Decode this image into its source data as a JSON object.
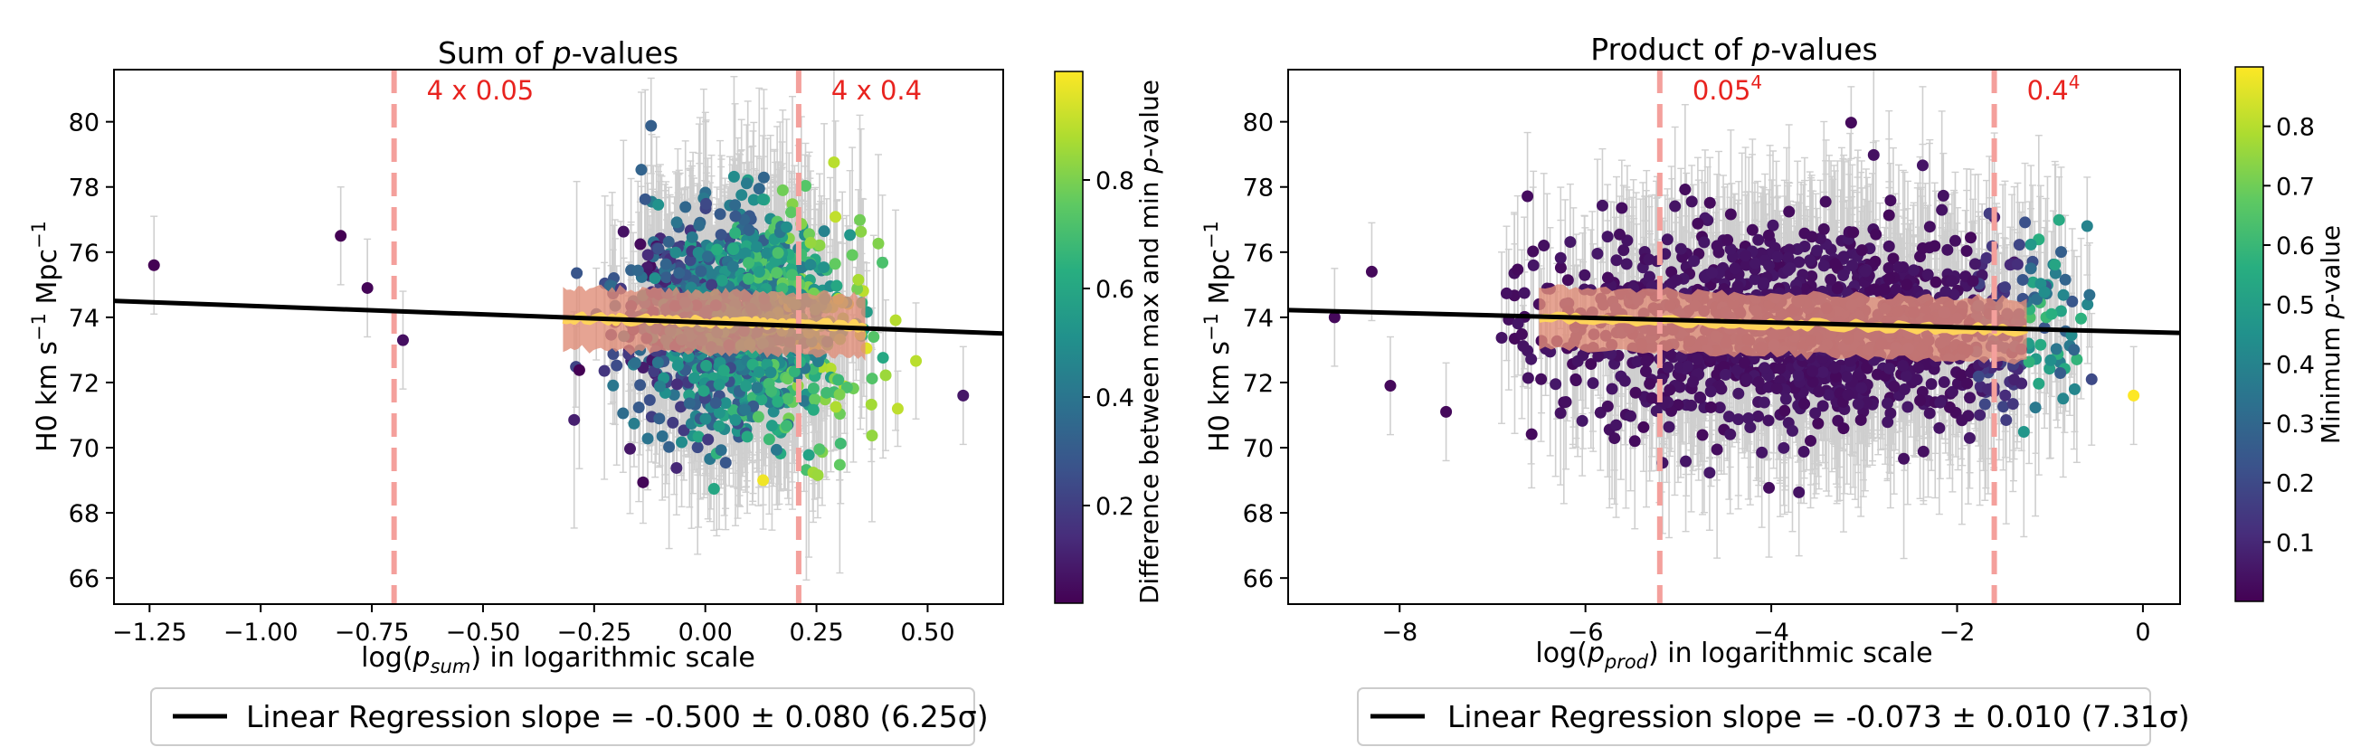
{
  "chart_data": [
    {
      "type": "scatter",
      "title": "Sum of p-values",
      "title_parts": {
        "before": "Sum of ",
        "italic": "p",
        "after": "-values"
      },
      "xlabel_parts": {
        "before": "log(",
        "base": "p",
        "sub": "sum",
        "after": ") in logarithmic scale"
      },
      "ylabel_parts": {
        "base": "H0 km s",
        "sup1": "−1",
        "mid": " Mpc",
        "sup2": "−1"
      },
      "xlim": [
        -1.33,
        0.67
      ],
      "ylim": [
        65.2,
        81.6
      ],
      "xticks": [
        -1.25,
        -1.0,
        -0.75,
        -0.5,
        -0.25,
        0.0,
        0.25,
        0.5
      ],
      "xtick_labels": [
        "−1.25",
        "−1.00",
        "−0.75",
        "−0.50",
        "−0.25",
        "0.00",
        "0.25",
        "0.50"
      ],
      "yticks": [
        66,
        68,
        70,
        72,
        74,
        76,
        78,
        80
      ],
      "ytick_labels": [
        "66",
        "68",
        "70",
        "72",
        "74",
        "76",
        "78",
        "80"
      ],
      "vlines": [
        {
          "x": -0.7,
          "label": "4 x 0.05",
          "label_parts": {
            "base": "4 x 0.05"
          }
        },
        {
          "x": 0.21,
          "label": "4 x 0.4",
          "label_parts": {
            "base": "4 x 0.4"
          }
        }
      ],
      "regression": {
        "slope": -0.5,
        "intercept": 73.84
      },
      "band": {
        "x_start": -0.32,
        "x_end": 0.36,
        "center_start": 73.98,
        "center_end": 73.74,
        "half_width": 0.95
      },
      "cloud": {
        "x_center": 0.07,
        "x_spread": 0.12,
        "x_min": -0.35,
        "x_max": 0.5,
        "y_mean": 73.85,
        "y_spread": 1.6,
        "count": 1300,
        "seed": 11,
        "color_mode": "sum"
      },
      "outliers": [
        {
          "x": -1.24,
          "y": 75.6,
          "c": 0.02
        },
        {
          "x": -0.82,
          "y": 76.5,
          "c": 0.02
        },
        {
          "x": -0.76,
          "y": 74.9,
          "c": 0.03
        },
        {
          "x": -0.68,
          "y": 73.3,
          "c": 0.06
        },
        {
          "x": 0.58,
          "y": 71.6,
          "c": 0.08
        },
        {
          "x": 0.13,
          "y": 69.0,
          "c": 0.98
        }
      ],
      "colorbar": {
        "label_parts": {
          "before": "Difference between max and min ",
          "italic": "p",
          "after": "-value"
        },
        "range": [
          0.02,
          1.0
        ],
        "ticks": [
          0.2,
          0.4,
          0.6,
          0.8
        ],
        "tick_labels": [
          "0.2",
          "0.4",
          "0.6",
          "0.8"
        ]
      },
      "legend": {
        "label": "Linear Regression slope = -0.500 ± 0.080 (6.25σ)"
      }
    },
    {
      "type": "scatter",
      "title": "Product of p-values",
      "title_parts": {
        "before": "Product of ",
        "italic": "p",
        "after": "-values"
      },
      "xlabel_parts": {
        "before": "log(",
        "base": "p",
        "sub": "prod",
        "after": ") in logarithmic scale"
      },
      "ylabel_parts": {
        "base": "H0 km s",
        "sup1": "−1",
        "mid": " Mpc",
        "sup2": "−1"
      },
      "xlim": [
        -9.2,
        0.4
      ],
      "ylim": [
        65.2,
        81.6
      ],
      "xticks": [
        -8,
        -6,
        -4,
        -2,
        0
      ],
      "xtick_labels": [
        "−8",
        "−6",
        "−4",
        "−2",
        "0"
      ],
      "yticks": [
        66,
        68,
        70,
        72,
        74,
        76,
        78,
        80
      ],
      "ytick_labels": [
        "66",
        "68",
        "70",
        "72",
        "74",
        "76",
        "78",
        "80"
      ],
      "vlines": [
        {
          "x": -5.2,
          "label": "0.05^4",
          "label_parts": {
            "base": "0.05",
            "sup": "4"
          }
        },
        {
          "x": -1.6,
          "label": "0.4^4",
          "label_parts": {
            "base": "0.4",
            "sup": "4"
          }
        }
      ],
      "regression": {
        "slope": -0.073,
        "intercept": 73.55
      },
      "band": {
        "x_start": -6.5,
        "x_end": -1.25,
        "center_start": 74.0,
        "center_end": 73.6,
        "half_width": 0.95
      },
      "cloud": {
        "x_center": -3.6,
        "x_spread": 1.45,
        "x_min": -7.0,
        "x_max": -0.55,
        "y_mean": 73.7,
        "y_spread": 1.55,
        "count": 1400,
        "seed": 29,
        "color_mode": "prod"
      },
      "outliers": [
        {
          "x": -8.7,
          "y": 74.0,
          "c": 0.02
        },
        {
          "x": -8.3,
          "y": 75.4,
          "c": 0.02
        },
        {
          "x": -8.1,
          "y": 71.9,
          "c": 0.02
        },
        {
          "x": -7.5,
          "y": 71.1,
          "c": 0.02
        },
        {
          "x": -0.1,
          "y": 71.6,
          "c": 0.9
        },
        {
          "x": -0.6,
          "y": 76.8,
          "c": 0.4
        }
      ],
      "colorbar": {
        "label_parts": {
          "before": "Minimum ",
          "italic": "p",
          "after": "-value"
        },
        "range": [
          0.0,
          0.9
        ],
        "ticks": [
          0.1,
          0.2,
          0.3,
          0.4,
          0.5,
          0.6,
          0.7,
          0.8
        ],
        "tick_labels": [
          "0.1",
          "0.2",
          "0.3",
          "0.4",
          "0.5",
          "0.6",
          "0.7",
          "0.8"
        ]
      },
      "legend": {
        "label": "Linear Regression slope = -0.073 ± 0.010 (7.31σ)"
      }
    }
  ],
  "colors": {
    "vline": "#f4a09c",
    "annotation": "#e8231f",
    "regression": "#000000",
    "errorbar": "#cfcfcf",
    "band_fill": "#e08d78",
    "band_center": "#ffd35a",
    "frame": "#000000"
  }
}
